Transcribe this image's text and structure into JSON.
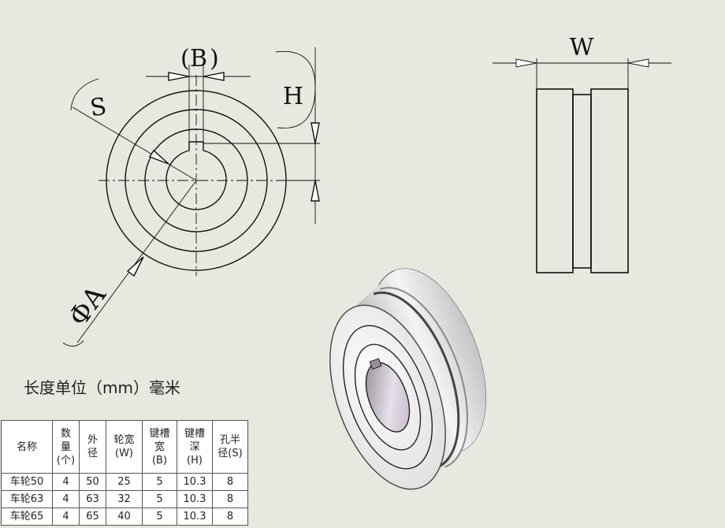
{
  "diagram": {
    "labels": {
      "B": "B",
      "H": "H",
      "W": "W",
      "S": "S",
      "A": "ΦA"
    }
  },
  "unit_note": "长度单位（mm）毫米",
  "table": {
    "headers": [
      [
        "名称"
      ],
      [
        "数",
        "量",
        "(个)"
      ],
      [
        "外",
        "径"
      ],
      [
        "轮宽",
        "(W)"
      ],
      [
        "键槽",
        "宽",
        "(B)"
      ],
      [
        "键槽",
        "深",
        "(H)"
      ],
      [
        "孔半",
        "径(S)"
      ]
    ],
    "rows": [
      [
        "车轮50",
        "4",
        "50",
        "25",
        "5",
        "10.3",
        "8"
      ],
      [
        "车轮63",
        "4",
        "63",
        "32",
        "5",
        "10.3",
        "8"
      ],
      [
        "车轮65",
        "4",
        "65",
        "40",
        "5",
        "10.3",
        "8"
      ]
    ]
  },
  "colors": {
    "background": "#e8e8e0",
    "line": "#111111",
    "table_bg": "#ffffff"
  }
}
